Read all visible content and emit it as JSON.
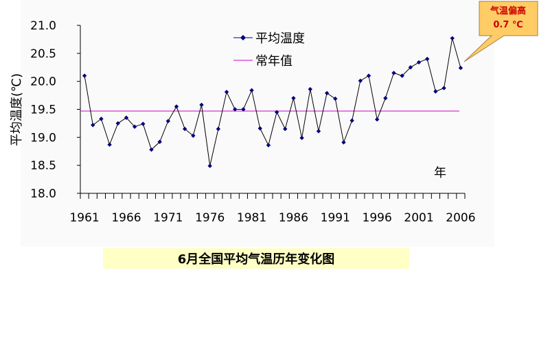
{
  "chart_data": {
    "type": "line",
    "title": "6月全国平均气温历年变化图",
    "ylabel": "平均温度(℃)",
    "xlabel": "年",
    "ylim": [
      18.0,
      21.0
    ],
    "y_ticks": [
      "18.0",
      "18.5",
      "19.0",
      "19.5",
      "20.0",
      "20.5",
      "21.0"
    ],
    "x_ticks": [
      "1961",
      "1966",
      "1971",
      "1976",
      "1981",
      "1986",
      "1991",
      "1996",
      "2001",
      "2006"
    ],
    "x": [
      1961,
      1962,
      1963,
      1964,
      1965,
      1966,
      1967,
      1968,
      1969,
      1970,
      1971,
      1972,
      1973,
      1974,
      1975,
      1976,
      1977,
      1978,
      1979,
      1980,
      1981,
      1982,
      1983,
      1984,
      1985,
      1986,
      1987,
      1988,
      1989,
      1990,
      1991,
      1992,
      1993,
      1994,
      1995,
      1996,
      1997,
      1998,
      1999,
      2000,
      2001,
      2002,
      2003,
      2004,
      2005,
      2006
    ],
    "series": [
      {
        "name": "平均温度",
        "color": "#000080",
        "values": [
          20.1,
          19.22,
          19.33,
          18.87,
          19.25,
          19.35,
          19.19,
          19.24,
          18.78,
          18.92,
          19.29,
          19.55,
          19.15,
          19.03,
          19.58,
          18.49,
          19.15,
          19.81,
          19.5,
          19.5,
          19.84,
          19.16,
          18.86,
          19.45,
          19.15,
          19.7,
          18.99,
          19.86,
          19.11,
          19.79,
          19.69,
          18.91,
          19.3,
          20.01,
          20.1,
          19.32,
          19.7,
          20.15,
          20.1,
          20.25,
          20.34,
          20.4,
          19.82,
          19.88,
          20.77,
          20.24
        ]
      },
      {
        "name": "常年值",
        "color": "#cc00cc",
        "value": 19.47
      }
    ],
    "grid": false,
    "legend": "top-center",
    "annotation": {
      "text_line1": "气温偏高",
      "text_line2": "0.7 ℃",
      "text_color": "#cc0000",
      "fill_color": "#ffcc66"
    }
  }
}
